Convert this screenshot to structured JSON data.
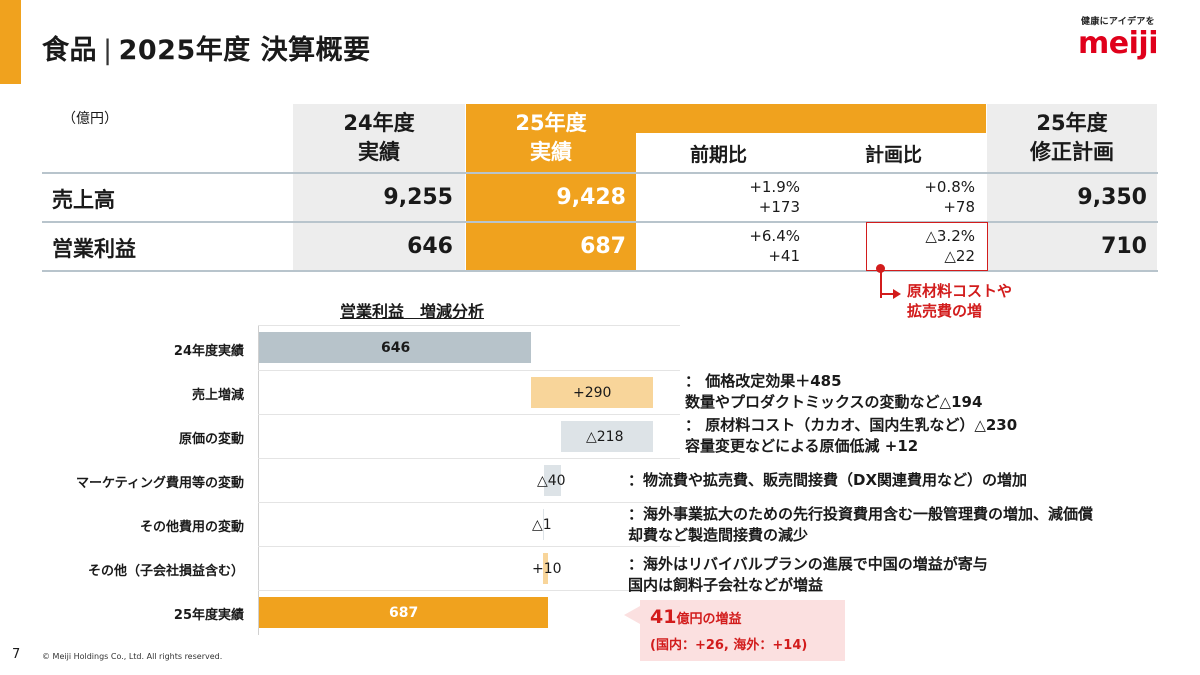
{
  "header": {
    "segment": "食品",
    "separator": "|",
    "title": "2025年度 決算概要"
  },
  "logo": {
    "tagline": "健康にアイデアを",
    "brand": "meiji"
  },
  "table": {
    "unit": "（億円）",
    "col_fy24": {
      "line1": "24年度",
      "line2": "実績"
    },
    "col_fy25": {
      "line1": "25年度",
      "line2": "実績"
    },
    "col_yoy": "前期比",
    "col_plan_ratio": "計画比",
    "col_plan": {
      "line1": "25年度",
      "line2": "修正計画"
    },
    "rows": [
      {
        "label": "売上高",
        "fy24": "9,255",
        "fy25": "9,428",
        "yoy": "+1.9%\n+173",
        "vs_plan": "+0.8%\n+78",
        "plan": "9,350"
      },
      {
        "label": "営業利益",
        "fy24": "646",
        "fy25": "687",
        "yoy": "+6.4%\n+41",
        "vs_plan": "△3.2%\n△22",
        "plan": "710"
      }
    ],
    "highlight_note": "原材料コストや\n拡売費の増"
  },
  "waterfall": {
    "title": "営業利益　増減分析",
    "rows": [
      {
        "label": "24年度実績",
        "value_label": "646"
      },
      {
        "label": "売上増減",
        "value_label": "+290"
      },
      {
        "label": "原価の変動",
        "value_label": "△218"
      },
      {
        "label": "マーケティング費用等の変動",
        "value_label": "△40"
      },
      {
        "label": "その他費用の変動",
        "value_label": "△1"
      },
      {
        "label": "その他（子会社損益含む）",
        "value_label": "+10"
      },
      {
        "label": "25年度実績",
        "value_label": "687"
      }
    ],
    "notes": [
      "：  価格改定効果＋485\n     数量やプロダクトミックスの変動など△194",
      "：  原材料コスト（カカオ、国内生乳など）△230\n     容量変更などによる原価低減 +12",
      "：物流費や拡売費、販売間接費（DX関連費用など）の増加",
      "：海外事業拡大のための先行投資費用含む一般管理費の増加、減価償\n   却費など製造間接費の減少",
      "：海外はリバイバルプランの進展で中国の増益が寄与\n   国内は飼料子会社などが増益"
    ],
    "callout": {
      "big_number": "41",
      "big_suffix": "億円の増益",
      "detail": "(国内：+26, 海外：+14)"
    }
  },
  "footer": {
    "page": "7",
    "copyright": "© Meiji Holdings Co., Ltd. All rights reserved."
  },
  "colors": {
    "accent_orange": "#f0a21e",
    "light_orange": "#f8d59a",
    "gray_bar": "#b7c3ca",
    "light_gray_bar": "#dde3e7",
    "red": "#d21c1c"
  }
}
